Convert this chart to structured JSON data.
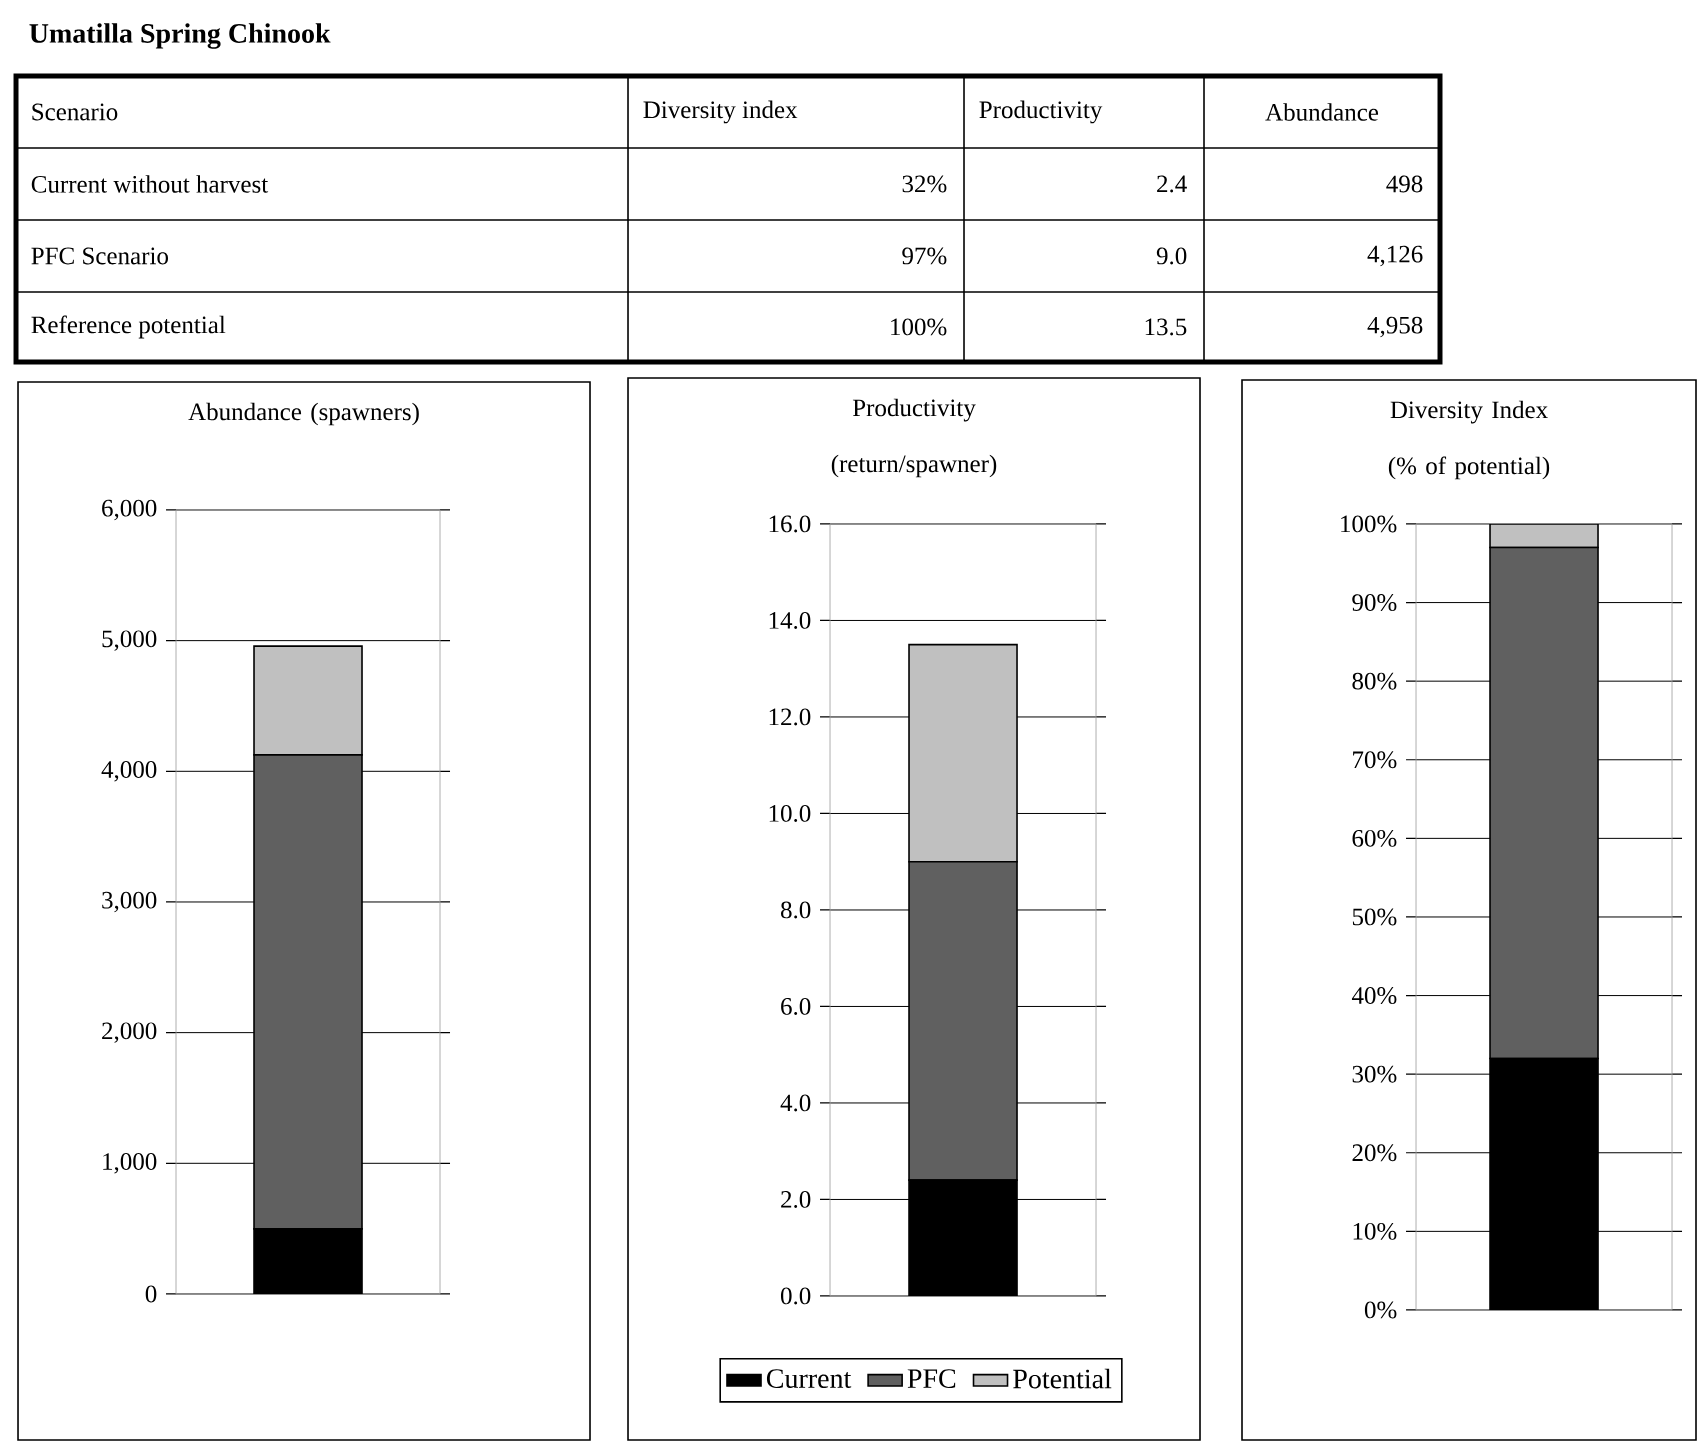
{
  "chart_data": [
    {
      "type": "other",
      "title": "Umatilla Spring Chinook",
      "annotations": [
        "Scenario",
        "Diversity index",
        "Productivity",
        "Abundance",
        "Current without harvest",
        "32%",
        "2.4",
        "498",
        "PFC Scenario",
        "97%",
        "9.0",
        "4,126",
        "Reference potential",
        "100%",
        "13.5",
        "4,958"
      ]
    },
    {
      "type": "bar",
      "title": "Abundance (spawners)",
      "stacked": true,
      "grid": "y",
      "categories": [
        null
      ],
      "series": [
        {
          "color": "#000000",
          "values": [
            498
          ]
        },
        {
          "color": "#606060",
          "values": [
            3628
          ]
        },
        {
          "color": "#c0c0c0",
          "values": [
            832
          ]
        }
      ],
      "ylim": [
        0,
        6000
      ],
      "yticks": [
        0,
        {
          "value": 1000,
          "label": "1,000"
        },
        {
          "value": 2000,
          "label": "2,000"
        },
        {
          "value": 3000,
          "label": "3,000"
        },
        {
          "value": 4000,
          "label": "4,000"
        },
        {
          "value": 5000,
          "label": "5,000"
        },
        {
          "value": 6000,
          "label": "6,000"
        }
      ]
    },
    {
      "type": "bar",
      "title": "Productivity (return/spawner)",
      "stacked": true,
      "grid": "y",
      "legend": "bottom",
      "categories": [
        null
      ],
      "series": [
        {
          "name": "Current",
          "color": "#000000",
          "values": [
            2.4
          ]
        },
        {
          "name": "PFC",
          "color": "#606060",
          "values": [
            6.6
          ]
        },
        {
          "name": "Potential",
          "color": "#c0c0c0",
          "values": [
            4.5
          ]
        }
      ],
      "ylim": [
        0,
        16
      ],
      "yticks": [
        {
          "value": 0,
          "label": "0.0"
        },
        {
          "value": 2,
          "label": "2.0"
        },
        {
          "value": 4,
          "label": "4.0"
        },
        {
          "value": 6,
          "label": "6.0"
        },
        {
          "value": 8,
          "label": "8.0"
        },
        {
          "value": 10,
          "label": "10.0"
        },
        {
          "value": 12,
          "label": "12.0"
        },
        {
          "value": 14,
          "label": "14.0"
        },
        {
          "value": 16,
          "label": "16.0"
        }
      ]
    },
    {
      "type": "bar",
      "title": "Diversity Index (% of potential)",
      "stacked": true,
      "grid": "y",
      "categories": [
        null
      ],
      "series": [
        {
          "color": "#000000",
          "values": [
            32
          ]
        },
        {
          "color": "#606060",
          "values": [
            65
          ]
        },
        {
          "color": "#c0c0c0",
          "values": [
            3
          ]
        }
      ],
      "ylim": [
        0,
        100
      ],
      "yticks": [
        {
          "value": 0,
          "label": "0%"
        },
        {
          "value": 10,
          "label": "10%"
        },
        {
          "value": 20,
          "label": "20%"
        },
        {
          "value": 30,
          "label": "30%"
        },
        {
          "value": 40,
          "label": "40%"
        },
        {
          "value": 50,
          "label": "50%"
        },
        {
          "value": 60,
          "label": "60%"
        },
        {
          "value": 70,
          "label": "70%"
        },
        {
          "value": 80,
          "label": "80%"
        },
        {
          "value": 90,
          "label": "90%"
        },
        {
          "value": 100,
          "label": "100%"
        }
      ]
    }
  ]
}
